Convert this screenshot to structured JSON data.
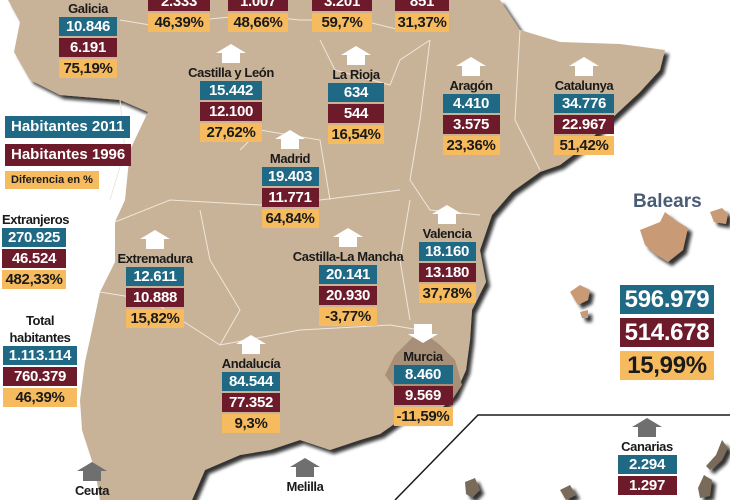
{
  "legend": {
    "h2011": "Habitantes 2011",
    "h1996": "Habitantes 1996",
    "diff": "Diferencia en %"
  },
  "colors": {
    "h2011": "#1f6985",
    "h1996": "#6d1b2b",
    "diff": "#f6bb5e",
    "land": "#c8b298"
  },
  "top_row": [
    {
      "h1996": "2.333",
      "diff": "46,39%"
    },
    {
      "h1996": "1.007",
      "diff": "48,66%"
    },
    {
      "h1996": "3.201",
      "diff": "59,7%"
    },
    {
      "h1996": "851",
      "diff": "31,37%"
    }
  ],
  "regions": {
    "galicia": {
      "name": "Galicia",
      "h2011": "10.846",
      "h1996": "6.191",
      "diff": "75,19%"
    },
    "castilla_leon": {
      "name": "Castilla y León",
      "h2011": "15.442",
      "h1996": "12.100",
      "diff": "27,62%"
    },
    "la_rioja": {
      "name": "La Rioja",
      "h2011": "634",
      "h1996": "544",
      "diff": "16,54%"
    },
    "aragon": {
      "name": "Aragón",
      "h2011": "4.410",
      "h1996": "3.575",
      "diff": "23,36%"
    },
    "catalunya": {
      "name": "Catalunya",
      "h2011": "34.776",
      "h1996": "22.967",
      "diff": "51,42%"
    },
    "madrid": {
      "name": "Madrid",
      "h2011": "19.403",
      "h1996": "11.771",
      "diff": "64,84%"
    },
    "extremadura": {
      "name": "Extremadura",
      "h2011": "12.611",
      "h1996": "10.888",
      "diff": "15,82%"
    },
    "castilla_la_mancha": {
      "name": "Castilla-La Mancha",
      "h2011": "20.141",
      "h1996": "20.930",
      "diff": "-3,77%"
    },
    "valencia": {
      "name": "Valencia",
      "h2011": "18.160",
      "h1996": "13.180",
      "diff": "37,78%"
    },
    "andalucia": {
      "name": "Andalucía",
      "h2011": "84.544",
      "h1996": "77.352",
      "diff": "9,3%"
    },
    "murcia": {
      "name": "Murcia",
      "h2011": "8.460",
      "h1996": "9.569",
      "diff": "-11,59%"
    },
    "balears": {
      "name": "Balears",
      "h2011": "596.979",
      "h1996": "514.678",
      "diff": "15,99%"
    },
    "canarias": {
      "name": "Canarias",
      "h2011": "2.294",
      "h1996": "1.297"
    },
    "ceuta": {
      "name": "Ceuta"
    },
    "melilla": {
      "name": "Melilla"
    }
  },
  "extranjeros": {
    "label": "Extranjeros",
    "h2011": "270.925",
    "h1996": "46.524",
    "diff": "482,33%"
  },
  "total": {
    "label": "Total habitantes",
    "h2011": "1.113.114",
    "h1996": "760.379",
    "diff": "46,39%"
  }
}
